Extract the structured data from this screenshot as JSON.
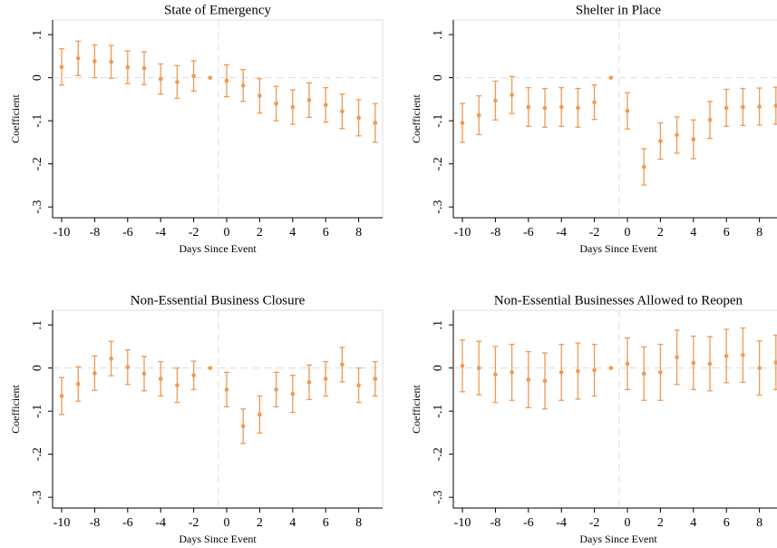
{
  "chart_data": [
    {
      "type": "errorbar",
      "title": "State of Emergency",
      "xlabel": "Days Since Event",
      "ylabel": "Coefficient",
      "color": "#ee9a55",
      "x": [
        -10,
        -9,
        -8,
        -7,
        -6,
        -5,
        -4,
        -3,
        -2,
        -1,
        0,
        1,
        2,
        3,
        4,
        5,
        6,
        7,
        8,
        9
      ],
      "values": [
        0.025,
        0.045,
        0.038,
        0.037,
        0.024,
        0.022,
        -0.003,
        -0.01,
        0.004,
        0,
        -0.007,
        -0.018,
        -0.042,
        -0.06,
        -0.068,
        -0.052,
        -0.063,
        -0.078,
        -0.093,
        -0.105
      ],
      "errors": [
        0.042,
        0.04,
        0.038,
        0.038,
        0.038,
        0.038,
        0.035,
        0.038,
        0.035,
        null,
        0.037,
        0.037,
        0.04,
        0.04,
        0.04,
        0.04,
        0.04,
        0.04,
        0.042,
        0.045
      ],
      "xlim": [
        -10.55,
        9.45
      ],
      "ylim": [
        -0.325,
        0.134
      ],
      "xticks": [
        -10,
        -8,
        -6,
        -4,
        -2,
        0,
        2,
        4,
        6,
        8
      ],
      "yticks": [
        {
          "value": 0.1,
          "label": ".1"
        },
        0,
        {
          "value": -0.1,
          "label": "-.1"
        },
        {
          "value": -0.2,
          "label": "-.2"
        },
        {
          "value": -0.3,
          "label": "-.3"
        }
      ],
      "vline": -0.5,
      "hline": 0
    },
    {
      "type": "errorbar",
      "title": "Shelter in Place",
      "xlabel": "Days Since Event",
      "ylabel": "Coefficient",
      "color": "#ee9a55",
      "x": [
        -10,
        -9,
        -8,
        -7,
        -6,
        -5,
        -4,
        -3,
        -2,
        -1,
        0,
        1,
        2,
        3,
        4,
        5,
        6,
        7,
        8,
        9
      ],
      "values": [
        -0.105,
        -0.087,
        -0.053,
        -0.04,
        -0.068,
        -0.07,
        -0.068,
        -0.07,
        -0.057,
        0,
        -0.077,
        -0.207,
        -0.147,
        -0.133,
        -0.143,
        -0.098,
        -0.07,
        -0.068,
        -0.067,
        -0.065
      ],
      "errors": [
        0.045,
        0.045,
        0.045,
        0.043,
        0.045,
        0.045,
        0.045,
        0.045,
        0.04,
        null,
        0.042,
        0.042,
        0.042,
        0.042,
        0.045,
        0.043,
        0.043,
        0.043,
        0.043,
        0.043
      ],
      "xlim": [
        -10.55,
        9.45
      ],
      "ylim": [
        -0.325,
        0.134
      ],
      "xticks": [
        -10,
        -8,
        -6,
        -4,
        -2,
        0,
        2,
        4,
        6,
        8
      ],
      "yticks": [
        {
          "value": 0.1,
          "label": ".1"
        },
        0,
        {
          "value": -0.1,
          "label": "-.1"
        },
        {
          "value": -0.2,
          "label": "-.2"
        },
        {
          "value": -0.3,
          "label": "-.3"
        }
      ],
      "vline": -0.5,
      "hline": 0
    },
    {
      "type": "errorbar",
      "title": "Non-Essential Business Closure",
      "xlabel": "Days Since Event",
      "ylabel": "Coefficient",
      "color": "#ee9a55",
      "x": [
        -10,
        -9,
        -8,
        -7,
        -6,
        -5,
        -4,
        -3,
        -2,
        -1,
        0,
        1,
        2,
        3,
        4,
        5,
        6,
        7,
        8,
        9
      ],
      "values": [
        -0.065,
        -0.037,
        -0.012,
        0.022,
        0.002,
        -0.013,
        -0.025,
        -0.04,
        -0.017,
        0,
        -0.05,
        -0.135,
        -0.108,
        -0.05,
        -0.06,
        -0.033,
        -0.025,
        0.008,
        -0.04,
        -0.025
      ],
      "errors": [
        0.043,
        0.04,
        0.04,
        0.04,
        0.04,
        0.04,
        0.04,
        0.04,
        0.033,
        null,
        0.04,
        0.04,
        0.043,
        0.04,
        0.043,
        0.04,
        0.04,
        0.04,
        0.04,
        0.04
      ],
      "xlim": [
        -10.55,
        9.45
      ],
      "ylim": [
        -0.325,
        0.134
      ],
      "xticks": [
        -10,
        -8,
        -6,
        -4,
        -2,
        0,
        2,
        4,
        6,
        8
      ],
      "yticks": [
        {
          "value": 0.1,
          "label": ".1"
        },
        0,
        {
          "value": -0.1,
          "label": "-.1"
        },
        {
          "value": -0.2,
          "label": "-.2"
        },
        {
          "value": -0.3,
          "label": "-.3"
        }
      ],
      "vline": -0.5,
      "hline": 0
    },
    {
      "type": "errorbar",
      "title": "Non-Essential Businesses Allowed to Reopen",
      "xlabel": "Days Since Event",
      "ylabel": "Coefficient",
      "color": "#ee9a55",
      "x": [
        -10,
        -9,
        -8,
        -7,
        -6,
        -5,
        -4,
        -3,
        -2,
        -1,
        0,
        1,
        2,
        3,
        4,
        5,
        6,
        7,
        8,
        9
      ],
      "values": [
        0.005,
        0,
        -0.015,
        -0.01,
        -0.027,
        -0.03,
        -0.01,
        -0.007,
        -0.005,
        0,
        0.01,
        -0.013,
        -0.01,
        0.025,
        0.012,
        0.01,
        0.028,
        0.03,
        0,
        0.013
      ],
      "errors": [
        0.06,
        0.062,
        0.065,
        0.065,
        0.065,
        0.065,
        0.065,
        0.065,
        0.06,
        null,
        0.06,
        0.062,
        0.065,
        0.063,
        0.062,
        0.063,
        0.062,
        0.063,
        0.063,
        0.063
      ],
      "xlim": [
        -10.55,
        9.45
      ],
      "ylim": [
        -0.325,
        0.134
      ],
      "xticks": [
        -10,
        -8,
        -6,
        -4,
        -2,
        0,
        2,
        4,
        6,
        8
      ],
      "yticks": [
        {
          "value": 0.1,
          "label": ".1"
        },
        0,
        {
          "value": -0.1,
          "label": "-.1"
        },
        {
          "value": -0.2,
          "label": "-.2"
        },
        {
          "value": -0.3,
          "label": "-.3"
        }
      ],
      "vline": -0.5,
      "hline": 0
    }
  ]
}
